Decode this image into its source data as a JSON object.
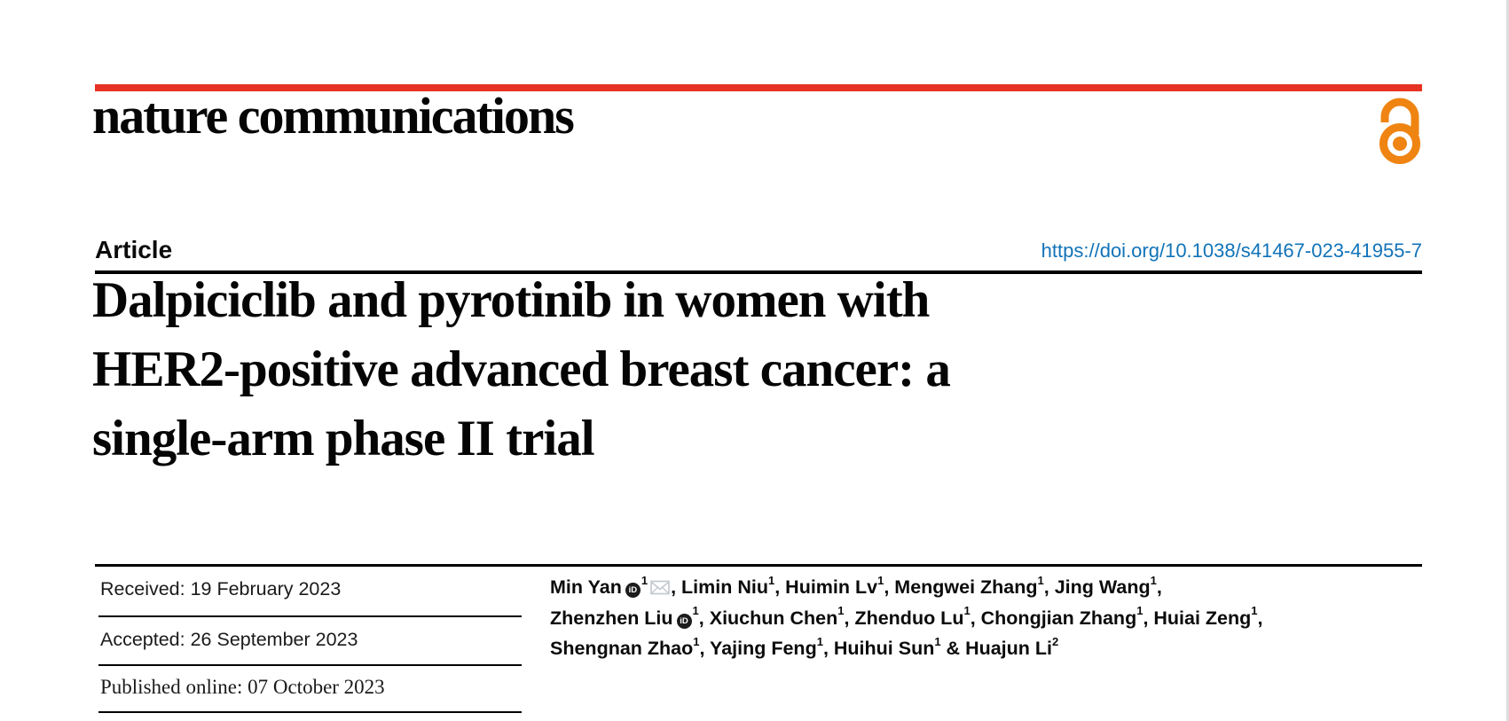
{
  "brand": {
    "journal_logo": "nature communications",
    "bar_color": "#e63323",
    "open_access_icon_color": "#ef8412"
  },
  "header": {
    "article_type": "Article",
    "doi": "https://doi.org/10.1038/s41467-023-41955-7",
    "doi_color": "#1173b8"
  },
  "title": {
    "text": "Dalpiciclib and pyrotinib in women with HER2-positive advanced breast cancer: a single-arm phase II trial",
    "lines": [
      "Dalpiciclib and pyrotinib in women with",
      "HER2-positive advanced breast cancer: a",
      "single-arm phase II trial"
    ]
  },
  "dates": {
    "items": [
      {
        "label": "Received",
        "date": "19 February 2023",
        "text": "Received: 19 February 2023"
      },
      {
        "label": "Accepted",
        "date": "26 September 2023",
        "text": "Accepted: 26 September 2023"
      },
      {
        "label": "Published online",
        "date": "07 October 2023",
        "text": "Published online: 07 October 2023"
      }
    ]
  },
  "authors": {
    "orcid_label": "iD",
    "list": [
      {
        "name": "Min Yan",
        "sup": "1",
        "orcid": true,
        "email": true,
        "sep": ", ",
        "line": 0
      },
      {
        "name": "Limin Niu",
        "sup": "1",
        "orcid": false,
        "email": false,
        "sep": ", ",
        "line": 0
      },
      {
        "name": "Huimin Lv",
        "sup": "1",
        "orcid": false,
        "email": false,
        "sep": ", ",
        "line": 0
      },
      {
        "name": "Mengwei Zhang",
        "sup": "1",
        "orcid": false,
        "email": false,
        "sep": ", ",
        "line": 0
      },
      {
        "name": "Jing Wang",
        "sup": "1",
        "orcid": false,
        "email": false,
        "sep": ",",
        "line": 0
      },
      {
        "name": "Zhenzhen Liu",
        "sup": "1",
        "orcid": true,
        "email": false,
        "sep": ", ",
        "line": 1
      },
      {
        "name": "Xiuchun Chen",
        "sup": "1",
        "orcid": false,
        "email": false,
        "sep": ", ",
        "line": 1
      },
      {
        "name": "Zhenduo Lu",
        "sup": "1",
        "orcid": false,
        "email": false,
        "sep": ", ",
        "line": 1
      },
      {
        "name": "Chongjian Zhang",
        "sup": "1",
        "orcid": false,
        "email": false,
        "sep": ", ",
        "line": 1
      },
      {
        "name": "Huiai Zeng",
        "sup": "1",
        "orcid": false,
        "email": false,
        "sep": ",",
        "line": 1
      },
      {
        "name": "Shengnan Zhao",
        "sup": "1",
        "orcid": false,
        "email": false,
        "sep": ", ",
        "line": 2
      },
      {
        "name": "Yajing Feng",
        "sup": "1",
        "orcid": false,
        "email": false,
        "sep": ", ",
        "line": 2
      },
      {
        "name": "Huihui Sun",
        "sup": "1",
        "orcid": false,
        "email": false,
        "sep": " & ",
        "line": 2
      },
      {
        "name": "Huajun Li",
        "sup": "2",
        "orcid": false,
        "email": false,
        "sep": "",
        "line": 2
      }
    ]
  }
}
